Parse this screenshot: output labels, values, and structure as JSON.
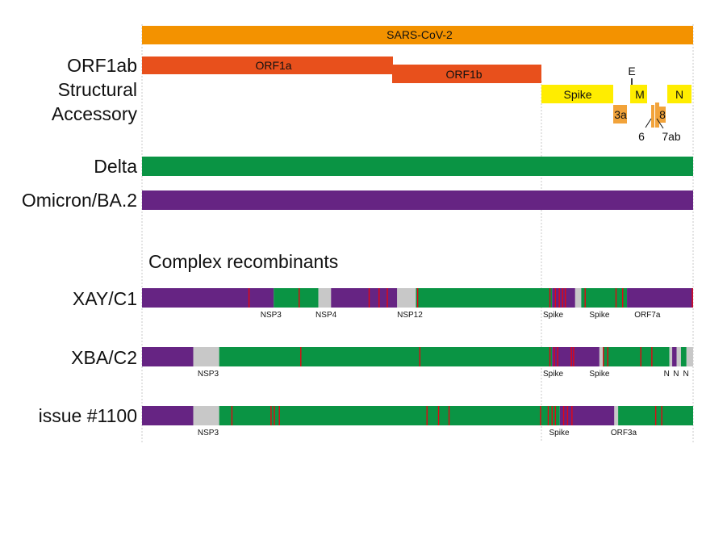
{
  "figure": {
    "genome_label": "SARS-CoV-2",
    "section_title": "Complex recombinants",
    "track_labels": {
      "orf1ab": "ORF1ab",
      "structural": "Structural",
      "accessory": "Accessory",
      "delta": "Delta",
      "omicron": "Omicron/BA.2"
    },
    "genes": {
      "orf1a": "ORF1a",
      "orf1b": "ORF1b",
      "spike": "Spike",
      "e": "E",
      "m": "M",
      "n": "N",
      "orf3a": "3a",
      "orf6": "6",
      "orf7ab": "7ab",
      "orf8": "8"
    },
    "colors": {
      "genome": "#F39200",
      "orf1": "#E8501C",
      "structural": "#FFED00",
      "accessory": "#F2A33A",
      "delta": "#0A9444",
      "omicron": "#662483",
      "unresolved": "#C8C8C8",
      "mutation": "#E30613"
    },
    "recombinants": [
      {
        "name": "XAY/C1",
        "segments": [
          {
            "from": 0,
            "to": 0.239,
            "lineage": "omicron"
          },
          {
            "from": 0.239,
            "to": 0.32,
            "lineage": "delta"
          },
          {
            "from": 0.32,
            "to": 0.343,
            "lineage": "unresolved"
          },
          {
            "from": 0.343,
            "to": 0.463,
            "lineage": "omicron"
          },
          {
            "from": 0.463,
            "to": 0.497,
            "lineage": "unresolved"
          },
          {
            "from": 0.497,
            "to": 0.744,
            "lineage": "delta"
          },
          {
            "from": 0.744,
            "to": 0.786,
            "lineage": "omicron"
          },
          {
            "from": 0.786,
            "to": 0.797,
            "lineage": "unresolved"
          },
          {
            "from": 0.797,
            "to": 0.88,
            "lineage": "delta"
          },
          {
            "from": 0.88,
            "to": 1.0,
            "lineage": "omicron"
          }
        ],
        "mutations": [
          0.194,
          0.285,
          0.412,
          0.43,
          0.445,
          0.5,
          0.74,
          0.75,
          0.757,
          0.763,
          0.768,
          0.804,
          0.86,
          0.872,
          1.0
        ],
        "region_labels": [
          {
            "pos": 0.234,
            "text": "NSP3"
          },
          {
            "pos": 0.334,
            "text": "NSP4"
          },
          {
            "pos": 0.486,
            "text": "NSP12"
          },
          {
            "pos": 0.746,
            "text": "Spike"
          },
          {
            "pos": 0.83,
            "text": "Spike"
          },
          {
            "pos": 0.917,
            "text": "ORF7a"
          }
        ]
      },
      {
        "name": "XBA/C2",
        "segments": [
          {
            "from": 0,
            "to": 0.093,
            "lineage": "omicron"
          },
          {
            "from": 0.093,
            "to": 0.14,
            "lineage": "unresolved"
          },
          {
            "from": 0.14,
            "to": 0.744,
            "lineage": "delta"
          },
          {
            "from": 0.744,
            "to": 0.83,
            "lineage": "omicron"
          },
          {
            "from": 0.83,
            "to": 0.838,
            "lineage": "unresolved"
          },
          {
            "from": 0.838,
            "to": 0.957,
            "lineage": "delta"
          },
          {
            "from": 0.957,
            "to": 0.962,
            "lineage": "unresolved"
          },
          {
            "from": 0.962,
            "to": 0.97,
            "lineage": "omicron"
          },
          {
            "from": 0.97,
            "to": 0.978,
            "lineage": "unresolved"
          },
          {
            "from": 0.978,
            "to": 0.988,
            "lineage": "delta"
          },
          {
            "from": 0.988,
            "to": 1.0,
            "lineage": "unresolved"
          }
        ],
        "mutations": [
          0.288,
          0.504,
          0.74,
          0.748,
          0.754,
          0.779,
          0.783,
          0.837,
          0.845,
          0.905,
          0.925
        ],
        "region_labels": [
          {
            "pos": 0.12,
            "text": "NSP3"
          },
          {
            "pos": 0.746,
            "text": "Spike"
          },
          {
            "pos": 0.83,
            "text": "Spike"
          },
          {
            "pos": 0.952,
            "text": "N"
          },
          {
            "pos": 0.969,
            "text": "N"
          },
          {
            "pos": 0.987,
            "text": "N"
          }
        ]
      },
      {
        "name": "issue #1100",
        "segments": [
          {
            "from": 0,
            "to": 0.093,
            "lineage": "omicron"
          },
          {
            "from": 0.093,
            "to": 0.14,
            "lineage": "unresolved"
          },
          {
            "from": 0.14,
            "to": 0.758,
            "lineage": "delta"
          },
          {
            "from": 0.758,
            "to": 0.857,
            "lineage": "omicron"
          },
          {
            "from": 0.857,
            "to": 0.864,
            "lineage": "unresolved"
          },
          {
            "from": 0.864,
            "to": 1.0,
            "lineage": "delta"
          }
        ],
        "mutations": [
          0.163,
          0.234,
          0.24,
          0.249,
          0.517,
          0.538,
          0.557,
          0.723,
          0.737,
          0.744,
          0.75,
          0.765,
          0.772,
          0.78,
          0.932,
          0.943
        ],
        "region_labels": [
          {
            "pos": 0.12,
            "text": "NSP3"
          },
          {
            "pos": 0.757,
            "text": "Spike"
          },
          {
            "pos": 0.874,
            "text": "ORF3a"
          }
        ]
      }
    ]
  }
}
